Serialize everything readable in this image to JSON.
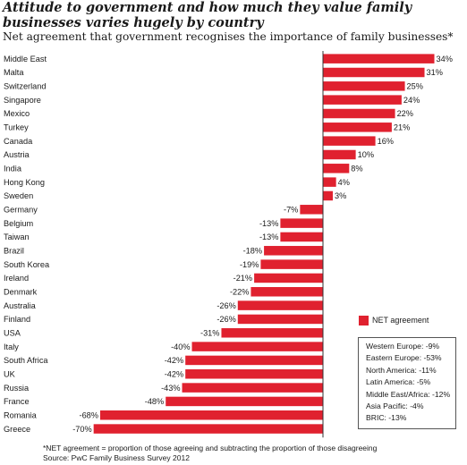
{
  "title": "Attitude to government and how much they value family businesses varies hugely by country",
  "subtitle": "Net agreement that government recognises the importance of family businesses*",
  "colors": {
    "bar": "#e0212f",
    "text": "#1a1a1a"
  },
  "chart_data": {
    "type": "bar",
    "orientation": "horizontal",
    "categories": [
      "Middle East",
      "Malta",
      "Switzerland",
      "Singapore",
      "Mexico",
      "Turkey",
      "Canada",
      "Austria",
      "India",
      "Hong Kong",
      "Sweden",
      "Germany",
      "Belgium",
      "Taiwan",
      "Brazil",
      "South Korea",
      "Ireland",
      "Denmark",
      "Australia",
      "Finland",
      "USA",
      "Italy",
      "South Africa",
      "UK",
      "Russia",
      "France",
      "Romania",
      "Greece"
    ],
    "values": [
      34,
      31,
      25,
      24,
      22,
      21,
      16,
      10,
      8,
      4,
      3,
      -7,
      -13,
      -13,
      -18,
      -19,
      -21,
      -22,
      -26,
      -26,
      -31,
      -40,
      -42,
      -42,
      -43,
      -48,
      -68,
      -70
    ],
    "value_labels": [
      "34%",
      "31%",
      "25%",
      "24%",
      "22%",
      "21%",
      "16%",
      "10%",
      "8%",
      "4%",
      "3%",
      "-7%",
      "-13%",
      "-13%",
      "-18%",
      "-19%",
      "-21%",
      "-22%",
      "-26%",
      "-26%",
      "-31%",
      "-40%",
      "-42%",
      "-42%",
      "-43%",
      "-48%",
      "-68%",
      "-70%"
    ],
    "series": [
      {
        "name": "NET agreement"
      }
    ],
    "xlim": [
      -70,
      34
    ],
    "grid": false,
    "legend_position": "right"
  },
  "regional": [
    "Western Europe: -9%",
    "Eastern Europe: -53%",
    "North America: -11%",
    "Latin America: -5%",
    "Middle East/Africa: -12%",
    "Asia Pacific: -4%",
    "BRIC: -13%"
  ],
  "footnote": {
    "definition": "*NET agreement = proportion of those agreeing and subtracting the proportion of those disagreeing",
    "source": "Source: PwC Family Business Survey 2012"
  }
}
